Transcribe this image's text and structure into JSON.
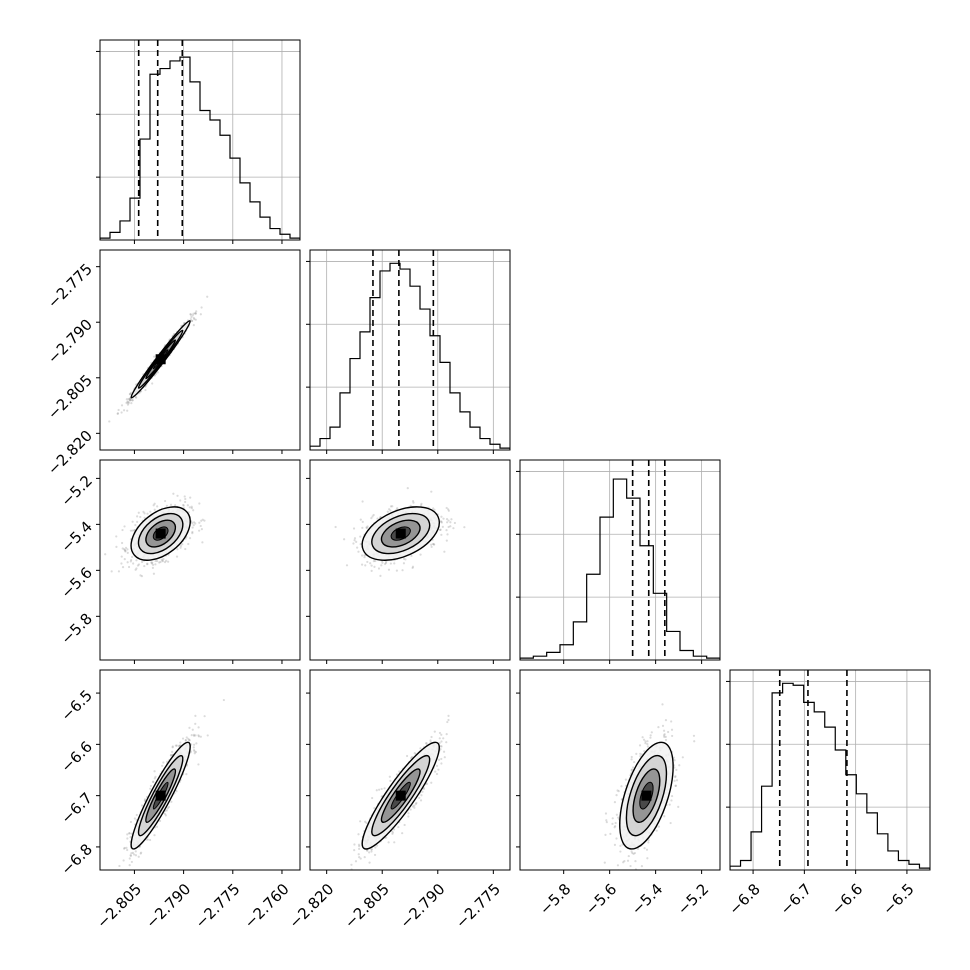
{
  "chart_data": {
    "type": "corner",
    "grid": true,
    "params": [
      {
        "range": [
          -2.8155,
          -2.7545
        ],
        "ticks": [
          "−2.805",
          "−2.790",
          "−2.775",
          "−2.760"
        ],
        "tick_values": [
          -2.805,
          -2.79,
          -2.775,
          -2.76
        ],
        "quantiles": [
          -2.8037,
          -2.7979,
          -2.7904
        ],
        "histogram": [
          0.01,
          0.04,
          0.1,
          0.22,
          0.53,
          0.87,
          0.9,
          0.94,
          0.96,
          0.83,
          0.68,
          0.63,
          0.55,
          0.43,
          0.3,
          0.2,
          0.12,
          0.06,
          0.03,
          0.01
        ]
      },
      {
        "range": [
          -2.8245,
          -2.7705
        ],
        "ticks": [
          "−2.820",
          "−2.805",
          "−2.790",
          "−2.775"
        ],
        "tick_values": [
          -2.82,
          -2.805,
          -2.79,
          -2.775
        ],
        "quantiles": [
          -2.8075,
          -2.8005,
          -2.7912
        ],
        "histogram": [
          0.02,
          0.06,
          0.12,
          0.3,
          0.48,
          0.62,
          0.8,
          0.94,
          0.98,
          0.95,
          0.86,
          0.74,
          0.6,
          0.46,
          0.3,
          0.2,
          0.12,
          0.06,
          0.03,
          0.01
        ]
      },
      {
        "range": [
          -5.99,
          -5.12
        ],
        "ticks": [
          "−5.8",
          "−5.6",
          "−5.4",
          "−5.2"
        ],
        "tick_values": [
          -5.8,
          -5.6,
          -5.4,
          -5.2
        ],
        "quantiles": [
          -5.5,
          -5.43,
          -5.36
        ],
        "histogram": [
          0.01,
          0.02,
          0.04,
          0.08,
          0.2,
          0.45,
          0.75,
          0.95,
          0.85,
          0.6,
          0.35,
          0.15,
          0.05,
          0.02,
          0.01
        ]
      },
      {
        "range": [
          -6.845,
          -6.455
        ],
        "ticks": [
          "−6.8",
          "−6.7",
          "−6.6",
          "−6.5"
        ],
        "tick_values": [
          -6.8,
          -6.7,
          -6.6,
          -6.5
        ],
        "quantiles": [
          -6.748,
          -6.693,
          -6.617
        ],
        "histogram": [
          0.02,
          0.05,
          0.2,
          0.44,
          0.93,
          0.98,
          0.97,
          0.88,
          0.83,
          0.75,
          0.63,
          0.5,
          0.4,
          0.3,
          0.19,
          0.1,
          0.05,
          0.03,
          0.01
        ]
      }
    ],
    "correlations": [
      [
        1.0,
        0.985,
        0.45,
        0.92
      ],
      [
        0.985,
        1.0,
        0.42,
        0.9
      ],
      [
        0.45,
        0.42,
        1.0,
        0.55
      ],
      [
        0.92,
        0.9,
        0.55,
        1.0
      ]
    ],
    "centers": [
      -2.797,
      -2.8,
      -5.44,
      -6.7
    ],
    "sigmas": [
      0.0045,
      0.0052,
      0.058,
      0.052
    ]
  }
}
